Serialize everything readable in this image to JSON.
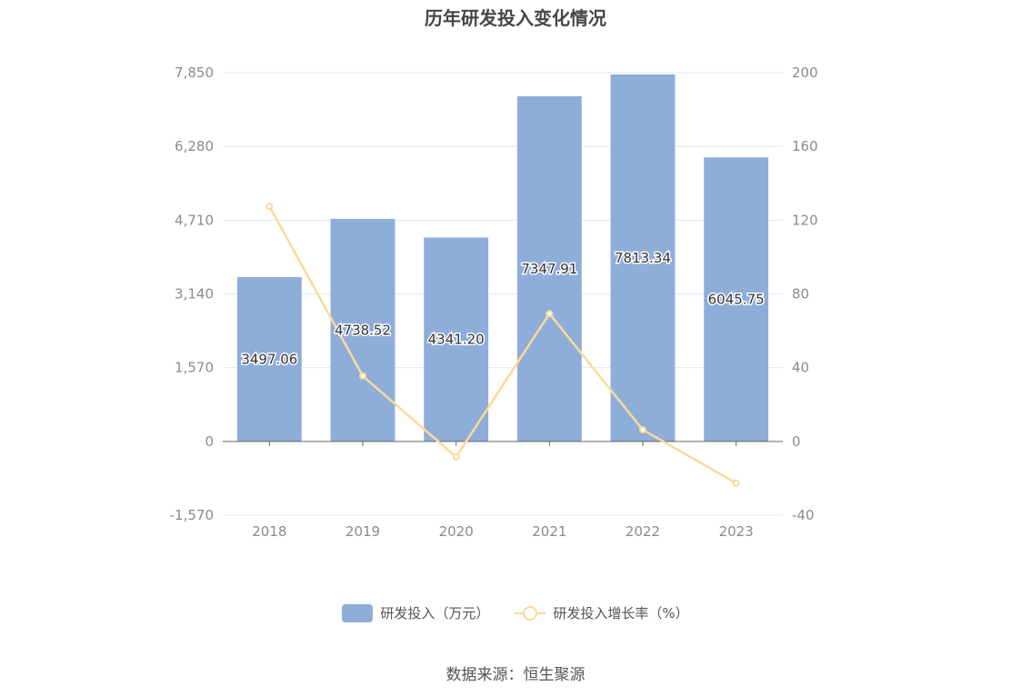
{
  "colors": {
    "bar": "#8eadd9",
    "line": "#fcd99a",
    "grid": "#e3e8f5",
    "axis": "#666666"
  },
  "legend": {
    "bar_label": "研发投入（万元）",
    "line_label": "研发投入增长率（%）"
  },
  "source": "数据来源：恒生聚源",
  "chart_data": {
    "type": "bar",
    "title": "历年研发投入变化情况",
    "categories": [
      "2018",
      "2019",
      "2020",
      "2021",
      "2022",
      "2023"
    ],
    "series": [
      {
        "name": "研发投入（万元）",
        "type": "bar",
        "axis": "left",
        "values": [
          3497.06,
          4738.52,
          4341.2,
          7347.91,
          7813.34,
          6045.75
        ],
        "labels": [
          "3497.06",
          "4738.52",
          "4341.20",
          "7347.91",
          "7813.34",
          "6045.75"
        ]
      },
      {
        "name": "研发投入增长率（%）",
        "type": "line",
        "axis": "right",
        "values": [
          127.5,
          35.5,
          -8.4,
          69.3,
          6.3,
          -22.6
        ]
      }
    ],
    "y_left": {
      "ticks": [
        -1570,
        0,
        1570,
        3140,
        4710,
        6280,
        7850
      ],
      "tick_labels": [
        "-1,570",
        "0",
        "1,570",
        "3,140",
        "4,710",
        "6,280",
        "7,850"
      ],
      "ylim": [
        -1570,
        7850
      ]
    },
    "y_right": {
      "ticks": [
        -40,
        0,
        40,
        80,
        120,
        160,
        200
      ],
      "tick_labels": [
        "-40",
        "0",
        "40",
        "80",
        "120",
        "160",
        "200"
      ],
      "ylim": [
        -40,
        200
      ]
    },
    "grid": true,
    "legend_position": "bottom"
  }
}
